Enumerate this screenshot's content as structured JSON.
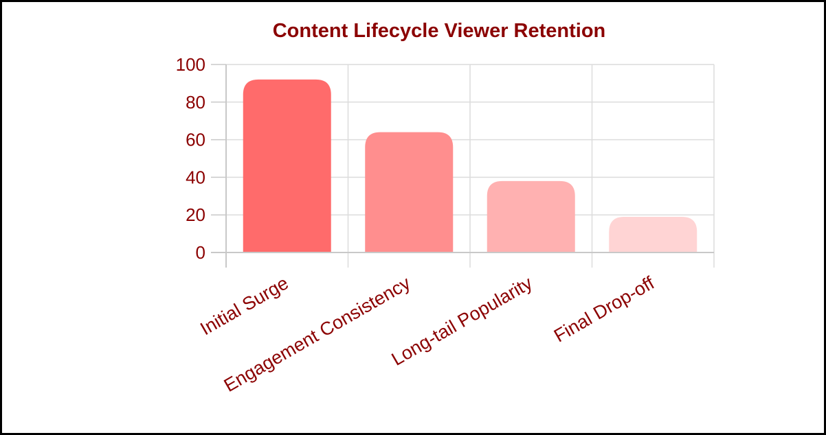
{
  "colors": {
    "text": "#8b0000",
    "grid": "#dcdcdc",
    "axis": "#c8c8c8",
    "bars": [
      "#ff6b6b",
      "#ff8e8e",
      "#ffb1b1",
      "#ffd4d4"
    ]
  },
  "chart_data": {
    "type": "bar",
    "title": "Content Lifecycle Viewer Retention",
    "xlabel": "",
    "ylabel": "",
    "categories": [
      "Initial Surge",
      "Engagement Consistency",
      "Long-tail Popularity",
      "Final Drop-off"
    ],
    "values": [
      92,
      64,
      38,
      19
    ],
    "ylim": [
      0,
      100
    ],
    "yticks": [
      0,
      20,
      40,
      60,
      80,
      100
    ],
    "grid": true,
    "legend": "none"
  }
}
